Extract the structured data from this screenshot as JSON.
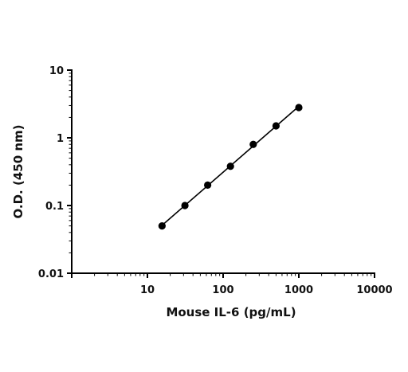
{
  "chart_data": {
    "type": "scatter",
    "title": "",
    "xlabel": "Mouse IL-6 (pg/mL)",
    "ylabel": "O.D. (450 nm)",
    "xscale": "log",
    "yscale": "log",
    "xlim": [
      1,
      10000
    ],
    "ylim": [
      0.01,
      10
    ],
    "x_tick_labels": [
      "10",
      "100",
      "1000",
      "10000"
    ],
    "x_tick_values": [
      10,
      100,
      1000,
      10000
    ],
    "y_tick_labels": [
      "0.01",
      "0.1",
      "1",
      "10"
    ],
    "y_tick_values": [
      0.01,
      0.1,
      1,
      10
    ],
    "grid": false,
    "legend": "none",
    "fit_line": true,
    "series": [
      {
        "x": [
          15.6,
          31.3,
          62.5,
          125,
          250,
          500,
          1000
        ],
        "y": [
          0.05,
          0.1,
          0.2,
          0.38,
          0.8,
          1.5,
          2.8
        ]
      }
    ],
    "colors": {
      "marker": "#000000",
      "line": "#000000"
    }
  }
}
